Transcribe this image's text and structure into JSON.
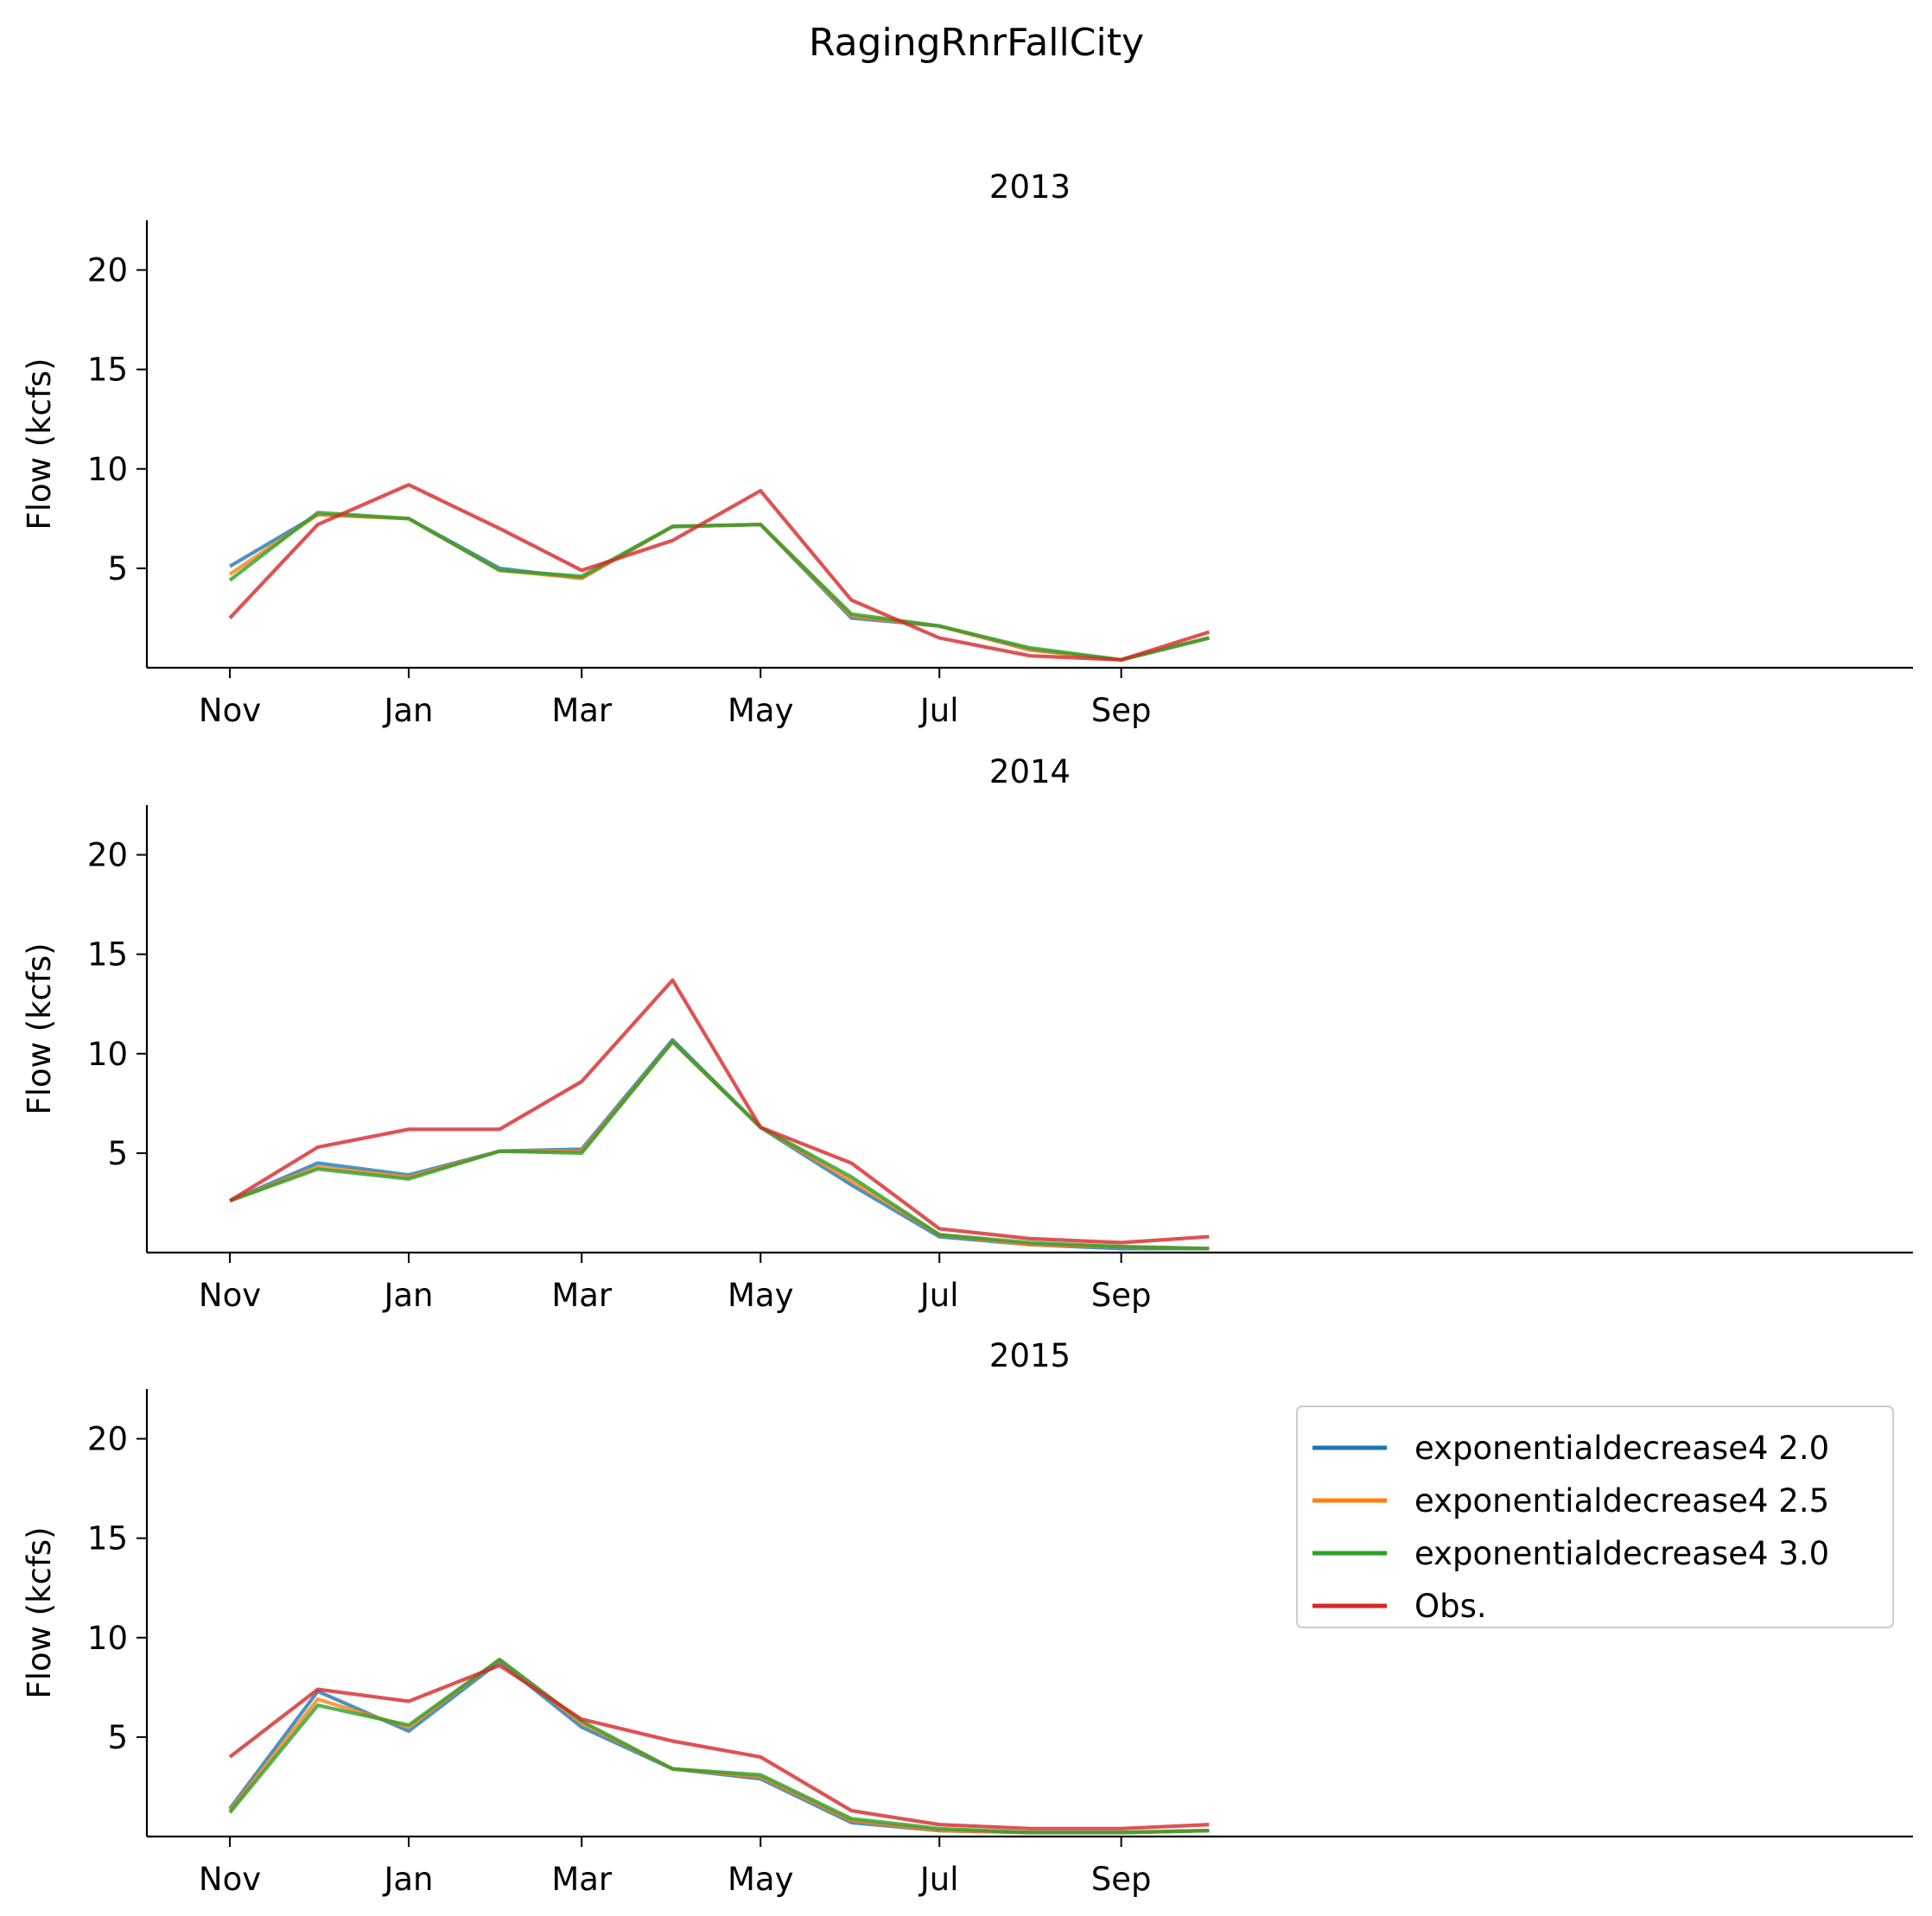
{
  "chart_data": {
    "type": "line",
    "title": "RagingRnrFallCity",
    "x_ticks": [
      "Nov",
      "Jan",
      "Mar",
      "May",
      "Jul",
      "Sep"
    ],
    "x_months": [
      "2012-11",
      "2012-12",
      "2013-01",
      "2013-02",
      "2013-03",
      "2013-04",
      "2013-05",
      "2013-06",
      "2013-07",
      "2013-08",
      "2013-09",
      "2013-10"
    ],
    "ylim": [
      0,
      22.5
    ],
    "y_ticks": [
      5,
      10,
      15,
      20
    ],
    "ylabel": "Flow (kcfs)",
    "legend_location": "upper-right",
    "legend_panel": 2,
    "panels": [
      {
        "title": "2013",
        "series": [
          {
            "name": "exponentialdecrease4 2.0",
            "color": "#1f77b4",
            "values": [
              5.1,
              7.7,
              7.5,
              5.0,
              4.5,
              7.1,
              7.2,
              2.5,
              2.1,
              0.9,
              0.4,
              1.5
            ]
          },
          {
            "name": "exponentialdecrease4 2.5",
            "color": "#ff7f0e",
            "values": [
              4.7,
              7.7,
              7.5,
              4.9,
              4.5,
              7.1,
              7.2,
              2.6,
              2.1,
              0.9,
              0.4,
              1.5
            ]
          },
          {
            "name": "exponentialdecrease4 3.0",
            "color": "#2ca02c",
            "values": [
              4.4,
              7.8,
              7.5,
              4.9,
              4.6,
              7.1,
              7.2,
              2.7,
              2.1,
              1.0,
              0.4,
              1.5
            ]
          },
          {
            "name": "Obs.",
            "color": "#d62728",
            "values": [
              2.5,
              7.2,
              9.2,
              7.0,
              4.9,
              6.4,
              8.9,
              3.4,
              1.5,
              0.6,
              0.4,
              1.8
            ]
          }
        ]
      },
      {
        "title": "2014",
        "series": [
          {
            "name": "exponentialdecrease4 2.0",
            "color": "#1f77b4",
            "values": [
              2.6,
              4.5,
              3.9,
              5.1,
              5.2,
              10.7,
              6.3,
              3.4,
              0.8,
              0.4,
              0.2,
              0.2
            ]
          },
          {
            "name": "exponentialdecrease4 2.5",
            "color": "#ff7f0e",
            "values": [
              2.6,
              4.3,
              3.8,
              5.1,
              5.1,
              10.6,
              6.3,
              3.6,
              0.9,
              0.4,
              0.3,
              0.2
            ]
          },
          {
            "name": "exponentialdecrease4 3.0",
            "color": "#2ca02c",
            "values": [
              2.6,
              4.2,
              3.7,
              5.1,
              5.0,
              10.6,
              6.3,
              3.8,
              0.9,
              0.5,
              0.3,
              0.2
            ]
          },
          {
            "name": "Obs.",
            "color": "#d62728",
            "values": [
              2.6,
              5.3,
              6.2,
              6.2,
              8.6,
              13.7,
              6.3,
              4.5,
              1.2,
              0.7,
              0.5,
              0.8
            ]
          }
        ]
      },
      {
        "title": "2015",
        "series": [
          {
            "name": "exponentialdecrease4 2.0",
            "color": "#1f77b4",
            "values": [
              1.4,
              7.3,
              5.3,
              8.8,
              5.5,
              3.4,
              2.9,
              0.7,
              0.3,
              0.2,
              0.2,
              0.3
            ]
          },
          {
            "name": "exponentialdecrease4 2.5",
            "color": "#ff7f0e",
            "values": [
              1.3,
              6.9,
              5.5,
              8.9,
              5.7,
              3.4,
              3.0,
              0.8,
              0.3,
              0.2,
              0.2,
              0.3
            ]
          },
          {
            "name": "exponentialdecrease4 3.0",
            "color": "#2ca02c",
            "values": [
              1.2,
              6.6,
              5.6,
              8.9,
              5.8,
              3.4,
              3.1,
              0.9,
              0.4,
              0.2,
              0.2,
              0.3
            ]
          },
          {
            "name": "Obs.",
            "color": "#d62728",
            "values": [
              4.0,
              7.4,
              6.8,
              8.6,
              5.9,
              4.8,
              4.0,
              1.3,
              0.6,
              0.4,
              0.4,
              0.6
            ]
          }
        ]
      }
    ]
  }
}
